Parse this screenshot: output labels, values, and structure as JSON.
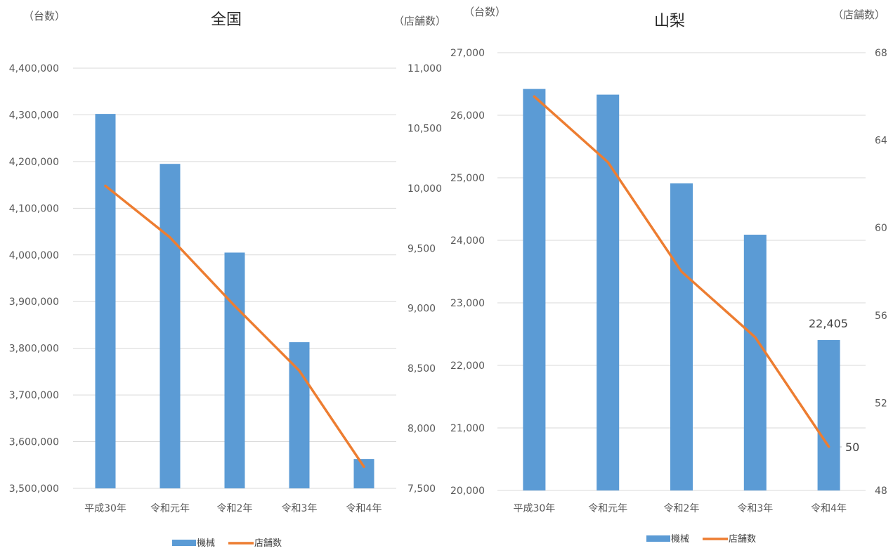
{
  "chart_data": [
    {
      "type": "bar",
      "title": "全国",
      "y_unit_left": "（台数）",
      "y_unit_right": "（店舗数）",
      "categories": [
        "平成30年",
        "令和元年",
        "令和2年",
        "令和3年",
        "令和4年"
      ],
      "ylim_left": [
        3500000,
        4400000
      ],
      "left_ticks": [
        "4,400,000",
        "4,300,000",
        "4,200,000",
        "4,100,000",
        "4,000,000",
        "3,900,000",
        "3,800,000",
        "3,700,000",
        "3,600,000",
        "3,500,000"
      ],
      "ylim_right": [
        7500,
        11000
      ],
      "right_ticks": [
        "11,000",
        "10,500",
        "10,000",
        "9,500",
        "9,000",
        "8,500",
        "8,000",
        "7,500"
      ],
      "series": [
        {
          "name": "機械",
          "kind": "bar",
          "axis": "left",
          "color": "#5B9BD5",
          "values": [
            4302000,
            4195000,
            4005000,
            3813000,
            3563000
          ]
        },
        {
          "name": "店舗数",
          "kind": "line",
          "axis": "right",
          "color": "#ED7D31",
          "values": [
            10020,
            9590,
            9020,
            8480,
            7680
          ]
        }
      ],
      "grid": true,
      "legend": "bottom"
    },
    {
      "type": "bar",
      "title": "山梨",
      "y_unit_left": "（台数）",
      "y_unit_right": "（店舗数）",
      "categories": [
        "平成30年",
        "令和元年",
        "令和2年",
        "令和3年",
        "令和4年"
      ],
      "ylim_left": [
        20000,
        27000
      ],
      "left_ticks": [
        "27,000",
        "26,000",
        "25,000",
        "24,000",
        "23,000",
        "22,000",
        "21,000",
        "20,000"
      ],
      "ylim_right": [
        48,
        68
      ],
      "right_ticks": [
        "68",
        "64",
        "60",
        "56",
        "52",
        "48"
      ],
      "series": [
        {
          "name": "機械",
          "kind": "bar",
          "axis": "left",
          "color": "#5B9BD5",
          "values": [
            26420,
            26330,
            24910,
            24090,
            22405
          ]
        },
        {
          "name": "店舗数",
          "kind": "line",
          "axis": "right",
          "color": "#ED7D31",
          "values": [
            66,
            63,
            58,
            55,
            50
          ]
        }
      ],
      "data_labels": [
        "22,405",
        "50"
      ],
      "grid": true,
      "legend": "bottom"
    }
  ]
}
